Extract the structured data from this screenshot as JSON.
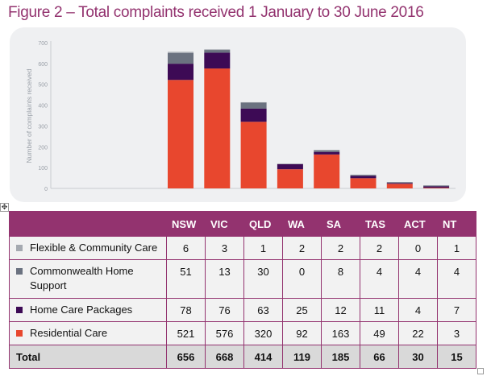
{
  "title": "Figure 2 – Total complaints received 1 January to 30 June 2016",
  "chart_data": {
    "type": "bar",
    "stacked": true,
    "ylabel": "Number of complaints received",
    "ylim": [
      0,
      700
    ],
    "yticks": [
      0,
      100,
      200,
      300,
      400,
      500,
      600,
      700
    ],
    "categories": [
      "NSW",
      "VIC",
      "QLD",
      "WA",
      "SA",
      "TAS",
      "ACT",
      "NT"
    ],
    "series": [
      {
        "name": "Residential Care",
        "color": "#e8472e",
        "values": [
          521,
          576,
          320,
          92,
          163,
          49,
          22,
          3
        ]
      },
      {
        "name": "Home Care Packages",
        "color": "#3d0a55",
        "values": [
          78,
          76,
          63,
          25,
          12,
          11,
          4,
          7
        ]
      },
      {
        "name": "Commonwealth Home Support",
        "color": "#6b7280",
        "values": [
          51,
          13,
          30,
          0,
          8,
          4,
          4,
          4
        ]
      },
      {
        "name": "Flexible & Community Care",
        "color": "#a5a9b0",
        "values": [
          6,
          3,
          1,
          2,
          2,
          2,
          0,
          1
        ]
      }
    ],
    "grid": false,
    "legend": "table-below"
  },
  "table": {
    "headers": [
      "",
      "NSW",
      "VIC",
      "QLD",
      "WA",
      "SA",
      "TAS",
      "ACT",
      "NT"
    ],
    "rows": [
      {
        "label": "Flexible & Community Care",
        "color": "#a5a9b0",
        "values": [
          "6",
          "3",
          "1",
          "2",
          "2",
          "2",
          "0",
          "1"
        ]
      },
      {
        "label": "Commonwealth Home Support",
        "color": "#6b7280",
        "values": [
          "51",
          "13",
          "30",
          "0",
          "8",
          "4",
          "4",
          "4"
        ]
      },
      {
        "label": "Home Care Packages",
        "color": "#3d0a55",
        "values": [
          "78",
          "76",
          "63",
          "25",
          "12",
          "11",
          "4",
          "7"
        ]
      },
      {
        "label": "Residential Care",
        "color": "#e8472e",
        "values": [
          "521",
          "576",
          "320",
          "92",
          "163",
          "49",
          "22",
          "3"
        ]
      }
    ],
    "total": {
      "label": "Total",
      "values": [
        "656",
        "668",
        "414",
        "119",
        "185",
        "66",
        "30",
        "15"
      ]
    }
  },
  "colors": {
    "accent": "#93336f"
  }
}
